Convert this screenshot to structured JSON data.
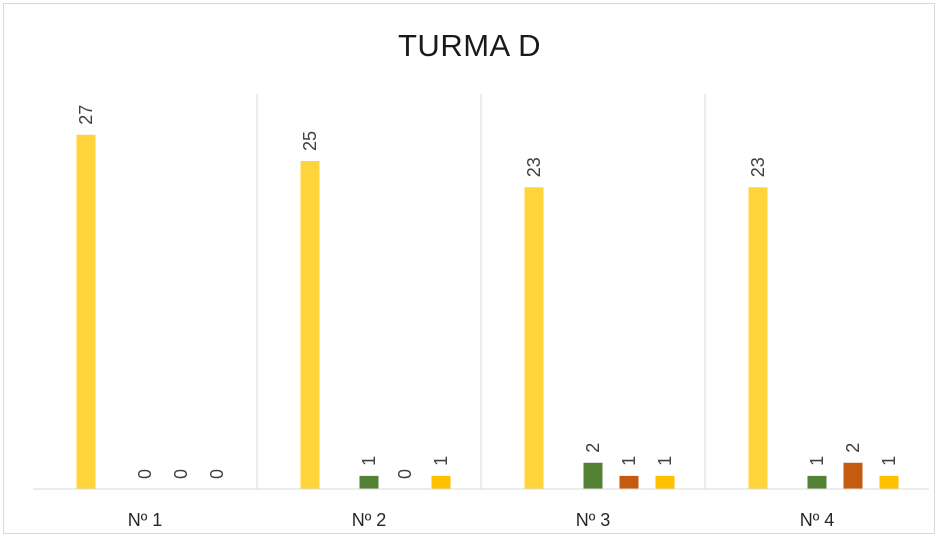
{
  "chart_data": {
    "type": "bar",
    "title": "TURMA D",
    "categories": [
      "Nº 1",
      "Nº 2",
      "Nº 3",
      "Nº 4"
    ],
    "series": [
      {
        "values": [
          27,
          25,
          23,
          23
        ],
        "color": "#ffd43b"
      },
      {
        "values": [
          0,
          1,
          2,
          1
        ],
        "color": "#548235"
      },
      {
        "values": [
          0,
          0,
          1,
          2
        ],
        "color": "#c55a11"
      },
      {
        "values": [
          0,
          1,
          1,
          1
        ],
        "color": "#ffc000"
      }
    ],
    "ylim": [
      0,
      28
    ],
    "grid": "vertical category separators",
    "legend": "none"
  }
}
